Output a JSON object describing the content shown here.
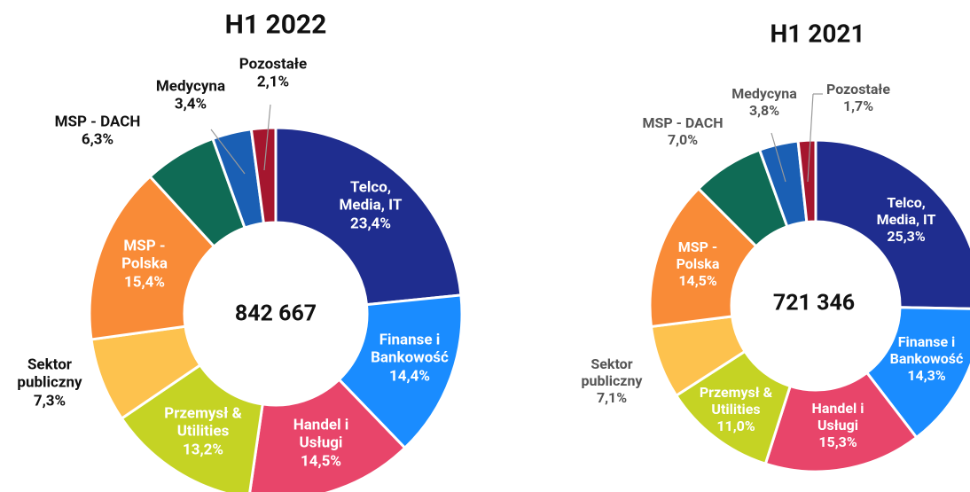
{
  "chart_data": [
    {
      "type": "pie",
      "title": "H1 2022",
      "total": "842 667",
      "categories": [
        "Telco, Media, IT",
        "Finanse i Bankowość",
        "Handel i Usługi",
        "Przemysł & Utilities",
        "Sektor publiczny",
        "MSP - Polska",
        "MSP - DACH",
        "Medycyna",
        "Pozostałe"
      ],
      "values": [
        23.4,
        14.4,
        14.5,
        13.2,
        7.3,
        15.4,
        6.3,
        3.4,
        2.1
      ],
      "value_labels": [
        "23,4%",
        "14,4%",
        "14,5%",
        "13,2%",
        "7,3%",
        "15,4%",
        "6,3%",
        "3,4%",
        "2,1%"
      ],
      "colors": [
        "#1f2d8f",
        "#1a8cff",
        "#e8456a",
        "#c5d324",
        "#fdc24e",
        "#f98b37",
        "#0f6b55",
        "#1a5fb4",
        "#a5162e"
      ]
    },
    {
      "type": "pie",
      "title": "H1 2021",
      "total": "721 346",
      "categories": [
        "Telco, Media, IT",
        "Finanse i Bankowość",
        "Handel i Usługi",
        "Przemysł & Utilities",
        "Sektor publiczny",
        "MSP - Polska",
        "MSP - DACH",
        "Medycyna",
        "Pozostałe"
      ],
      "values": [
        25.3,
        14.3,
        15.3,
        11.0,
        7.1,
        14.5,
        7.0,
        3.8,
        1.7
      ],
      "value_labels": [
        "25,3%",
        "14,3%",
        "15,3%",
        "11,0%",
        "7,1%",
        "14,5%",
        "7,0%",
        "3,8%",
        "1,7%"
      ],
      "colors": [
        "#1f2d8f",
        "#1a8cff",
        "#e8456a",
        "#c5d324",
        "#fdc24e",
        "#f98b37",
        "#0f6b55",
        "#1a5fb4",
        "#a5162e"
      ]
    }
  ]
}
